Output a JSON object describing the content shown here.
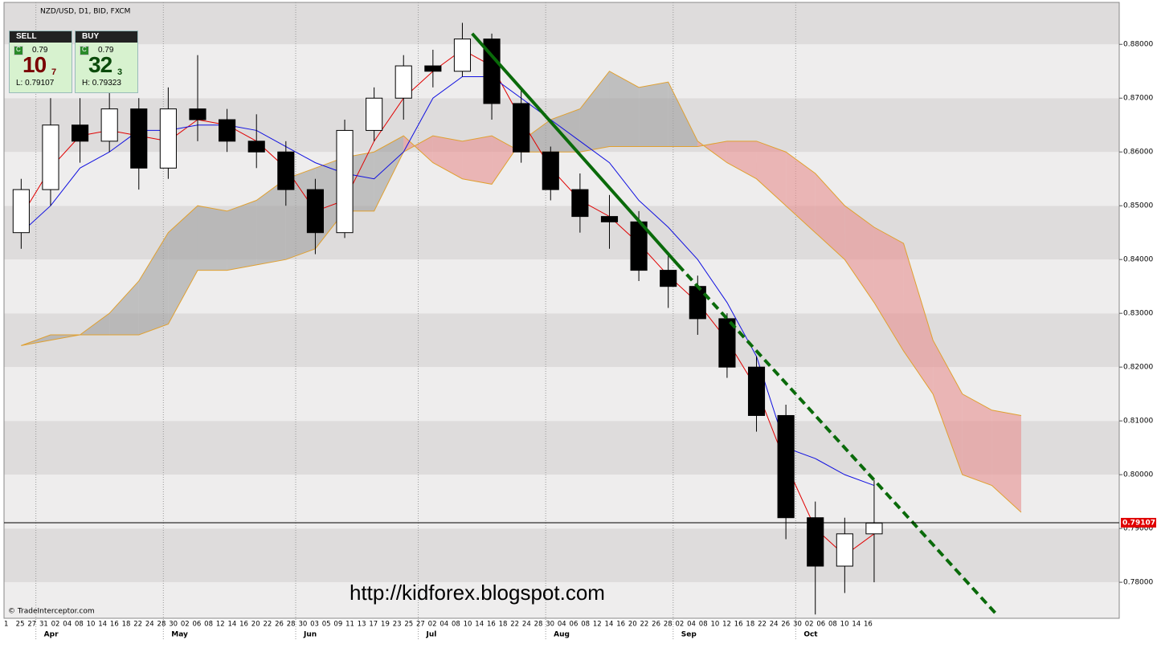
{
  "chart_data": {
    "type": "candlestick",
    "title": "NZD/USD, D1, BID, FXCM",
    "watermark": "© TradeInterceptor.com",
    "annotation": "http://kidforex.blogspot.com",
    "xlim": [
      -0.5,
      227
    ],
    "ylim": [
      0.7733,
      0.8878
    ],
    "yticks": [
      {
        "value": 0.78,
        "label": "0.78000"
      },
      {
        "value": 0.79,
        "label": "0.79000"
      },
      {
        "value": 0.8,
        "label": "0.80000"
      },
      {
        "value": 0.81,
        "label": "0.81000"
      },
      {
        "value": 0.82,
        "label": "0.82000"
      },
      {
        "value": 0.83,
        "label": "0.83000"
      },
      {
        "value": 0.84,
        "label": "0.84000"
      },
      {
        "value": 0.85,
        "label": "0.85000"
      },
      {
        "value": 0.86,
        "label": "0.86000"
      },
      {
        "value": 0.87,
        "label": "0.87000"
      },
      {
        "value": 0.88,
        "label": "0.88000"
      }
    ],
    "xticks": [
      {
        "value": 6,
        "label": "Apr"
      },
      {
        "value": 32,
        "label": "May"
      },
      {
        "value": 59,
        "label": "Jun"
      },
      {
        "value": 84,
        "label": "Jul"
      },
      {
        "value": 110,
        "label": "Aug"
      },
      {
        "value": 136,
        "label": "Sep"
      },
      {
        "value": 161,
        "label": "Oct"
      }
    ],
    "day_labels": [
      "1",
      "25",
      "27",
      "31",
      "02",
      "04",
      "08",
      "10",
      "14",
      "16",
      "18",
      "22",
      "24",
      "28",
      "30",
      "02",
      "06",
      "08",
      "12",
      "14",
      "16",
      "20",
      "22",
      "26",
      "28",
      "30",
      "03",
      "05",
      "09",
      "11",
      "13",
      "17",
      "19",
      "23",
      "25",
      "27",
      "02",
      "04",
      "08",
      "10",
      "14",
      "16",
      "18",
      "22",
      "24",
      "28",
      "30",
      "04",
      "06",
      "08",
      "12",
      "14",
      "16",
      "20",
      "22",
      "26",
      "28",
      "02",
      "04",
      "08",
      "10",
      "12",
      "16",
      "18",
      "22",
      "24",
      "26",
      "30",
      "02",
      "06",
      "08",
      "10",
      "14",
      "16"
    ],
    "x": [
      3,
      9,
      15,
      21,
      27,
      33,
      39,
      45,
      51,
      57,
      63,
      69,
      75,
      81,
      87,
      93,
      99,
      105,
      111,
      117,
      123,
      129,
      135,
      141,
      147,
      153,
      159,
      165,
      171,
      177
    ],
    "open": [
      0.845,
      0.853,
      0.865,
      0.862,
      0.868,
      0.857,
      0.868,
      0.866,
      0.862,
      0.86,
      0.853,
      0.845,
      0.864,
      0.87,
      0.876,
      0.875,
      0.881,
      0.869,
      0.86,
      0.853,
      0.848,
      0.847,
      0.838,
      0.835,
      0.829,
      0.82,
      0.811,
      0.792,
      0.783,
      0.789
    ],
    "high": [
      0.855,
      0.87,
      0.87,
      0.872,
      0.87,
      0.872,
      0.878,
      0.868,
      0.867,
      0.862,
      0.855,
      0.866,
      0.872,
      0.878,
      0.879,
      0.884,
      0.882,
      0.872,
      0.861,
      0.856,
      0.852,
      0.849,
      0.841,
      0.837,
      0.83,
      0.822,
      0.813,
      0.795,
      0.792,
      0.799
    ],
    "low": [
      0.842,
      0.85,
      0.858,
      0.86,
      0.853,
      0.855,
      0.862,
      0.86,
      0.857,
      0.85,
      0.841,
      0.844,
      0.862,
      0.866,
      0.872,
      0.874,
      0.866,
      0.858,
      0.851,
      0.845,
      0.842,
      0.836,
      0.831,
      0.826,
      0.818,
      0.808,
      0.788,
      0.774,
      0.778,
      0.78
    ],
    "close": [
      0.853,
      0.865,
      0.862,
      0.868,
      0.857,
      0.868,
      0.866,
      0.862,
      0.86,
      0.853,
      0.845,
      0.864,
      0.87,
      0.876,
      0.875,
      0.881,
      0.869,
      0.86,
      0.853,
      0.848,
      0.847,
      0.838,
      0.835,
      0.829,
      0.82,
      0.811,
      0.792,
      0.783,
      0.789,
      0.791
    ],
    "series": [
      {
        "name": "Tenkan",
        "color": "#e00000",
        "values": [
          0.848,
          0.857,
          0.863,
          0.864,
          0.863,
          0.862,
          0.866,
          0.865,
          0.862,
          0.857,
          0.849,
          0.851,
          0.862,
          0.87,
          0.875,
          0.879,
          0.876,
          0.866,
          0.857,
          0.851,
          0.848,
          0.843,
          0.837,
          0.832,
          0.825,
          0.816,
          0.802,
          0.79,
          0.785,
          0.789
        ]
      },
      {
        "name": "Kijun",
        "color": "#1010e0",
        "values": [
          0.845,
          0.85,
          0.857,
          0.86,
          0.864,
          0.864,
          0.865,
          0.865,
          0.864,
          0.861,
          0.858,
          0.856,
          0.855,
          0.86,
          0.87,
          0.874,
          0.874,
          0.87,
          0.866,
          0.862,
          0.858,
          0.851,
          0.846,
          0.84,
          0.832,
          0.822,
          0.805,
          0.803,
          0.8,
          0.798
        ]
      }
    ],
    "cloud": {
      "color": "#e0a030",
      "up_color": "#a0a0a0",
      "down_color": "#e89090",
      "x": [
        3,
        9,
        15,
        21,
        27,
        33,
        39,
        45,
        51,
        57,
        63,
        69,
        75,
        81,
        87,
        93,
        99,
        105,
        111,
        117,
        123,
        129,
        135,
        141,
        147,
        153,
        159,
        165,
        171,
        177,
        183,
        189,
        195,
        201,
        207
      ],
      "span_a": [
        0.824,
        0.826,
        0.826,
        0.83,
        0.836,
        0.845,
        0.85,
        0.849,
        0.851,
        0.855,
        0.857,
        0.859,
        0.86,
        0.863,
        0.858,
        0.855,
        0.854,
        0.862,
        0.866,
        0.868,
        0.875,
        0.872,
        0.873,
        0.862,
        0.858,
        0.855,
        0.85,
        0.845,
        0.84,
        0.832,
        0.823,
        0.815,
        0.8,
        0.798,
        0.793
      ],
      "span_b": [
        0.824,
        0.825,
        0.826,
        0.826,
        0.826,
        0.828,
        0.838,
        0.838,
        0.839,
        0.84,
        0.842,
        0.849,
        0.849,
        0.86,
        0.863,
        0.862,
        0.863,
        0.86,
        0.86,
        0.86,
        0.861,
        0.861,
        0.861,
        0.861,
        0.862,
        0.862,
        0.86,
        0.856,
        0.85,
        0.846,
        0.843,
        0.825,
        0.815,
        0.812,
        0.811
      ]
    },
    "trendlines": [
      {
        "color": "#0a6a0a",
        "style": "solid",
        "x": [
          95,
          137
        ],
        "y": [
          0.882,
          0.839
        ]
      },
      {
        "color": "#0a6a0a",
        "style": "dashed",
        "x": [
          137,
          202
        ],
        "y": [
          0.839,
          0.774
        ]
      }
    ],
    "current_price": {
      "value": 0.79107,
      "label": "0.79107",
      "color": "#e00000"
    },
    "widget": {
      "sell": {
        "title": "SELL",
        "badge": "C",
        "prefix": "0.79",
        "pips": "10",
        "fraction": "7",
        "limit": "L: 0.79107",
        "color": "#7a0000"
      },
      "buy": {
        "title": "BUY",
        "badge": "C",
        "prefix": "0.79",
        "pips": "32",
        "fraction": "3",
        "limit": "H: 0.79323",
        "color": "#0a4a0a"
      }
    }
  }
}
